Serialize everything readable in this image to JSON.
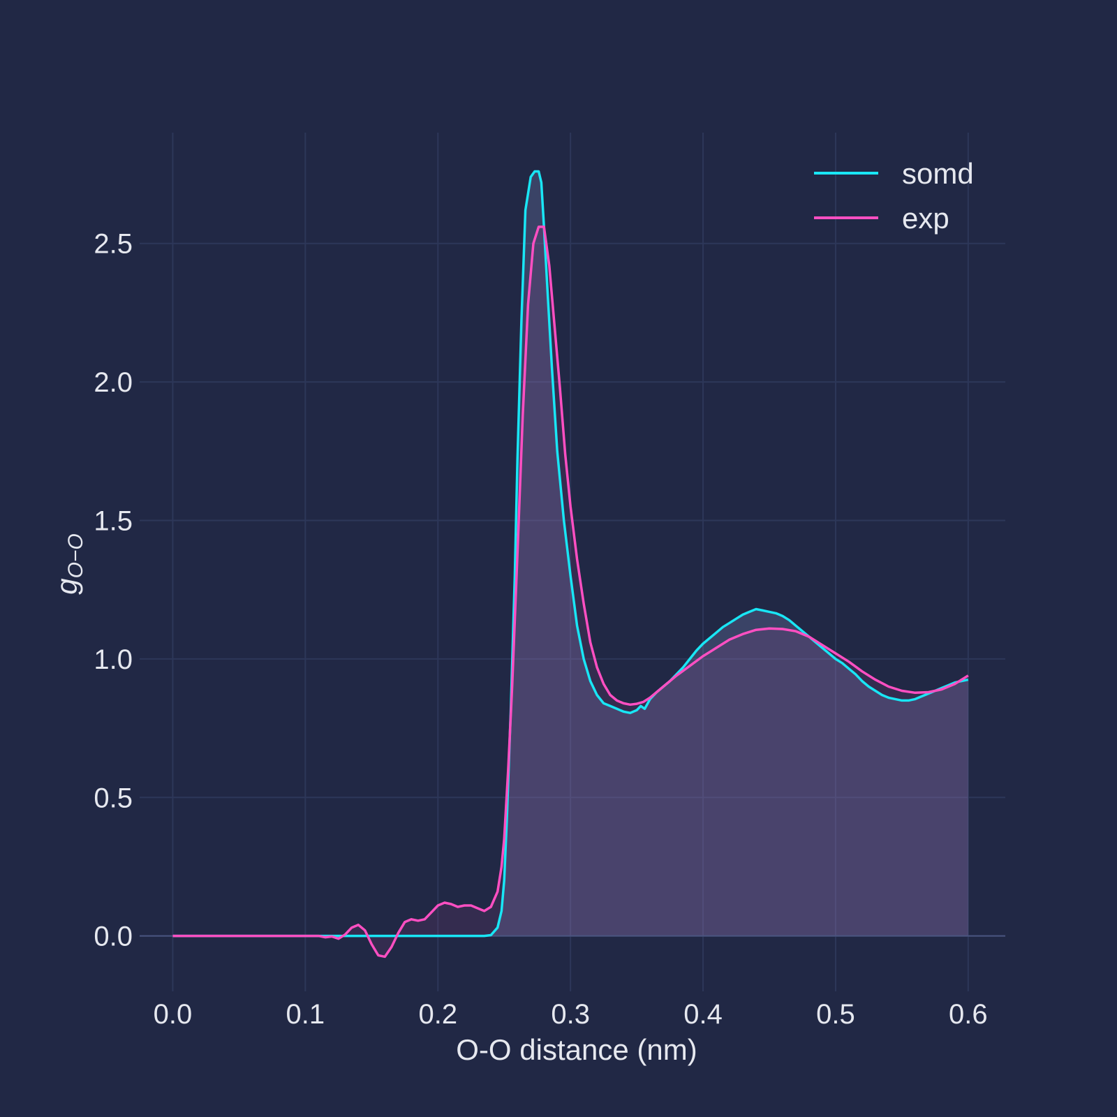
{
  "chart_data": {
    "type": "line",
    "xlabel": "O-O distance (nm)",
    "ylabel_main": "g",
    "ylabel_sub": "O−O",
    "xlim": [
      -0.025,
      0.628
    ],
    "ylim": [
      -0.2,
      2.9
    ],
    "xticks": [
      {
        "value": 0.0,
        "label": "0.0"
      },
      {
        "value": 0.1,
        "label": "0.1"
      },
      {
        "value": 0.2,
        "label": "0.2"
      },
      {
        "value": 0.3,
        "label": "0.3"
      },
      {
        "value": 0.4,
        "label": "0.4"
      },
      {
        "value": 0.5,
        "label": "0.5"
      },
      {
        "value": 0.6,
        "label": "0.6"
      }
    ],
    "yticks": [
      {
        "value": 0.0,
        "label": "0.0"
      },
      {
        "value": 0.5,
        "label": "0.5"
      },
      {
        "value": 1.0,
        "label": "1.0"
      },
      {
        "value": 1.5,
        "label": "1.5"
      },
      {
        "value": 2.0,
        "label": "2.0"
      },
      {
        "value": 2.5,
        "label": "2.5"
      }
    ],
    "grid": true,
    "legend_position": "top-right",
    "colors": {
      "background": "#212845",
      "grid": "#2d3759",
      "fill": "#8a9ad0",
      "fill_neg": "#c04a9a"
    },
    "series": [
      {
        "name": "somd",
        "color": "#19e6f5",
        "filled": true,
        "x": [
          0.0,
          0.1,
          0.2,
          0.235,
          0.24,
          0.245,
          0.248,
          0.25,
          0.252,
          0.255,
          0.258,
          0.26,
          0.263,
          0.266,
          0.27,
          0.273,
          0.276,
          0.278,
          0.28,
          0.283,
          0.286,
          0.29,
          0.295,
          0.3,
          0.305,
          0.31,
          0.315,
          0.32,
          0.325,
          0.33,
          0.335,
          0.34,
          0.345,
          0.35,
          0.353,
          0.356,
          0.36,
          0.365,
          0.37,
          0.375,
          0.38,
          0.385,
          0.39,
          0.395,
          0.4,
          0.405,
          0.41,
          0.415,
          0.42,
          0.425,
          0.43,
          0.435,
          0.44,
          0.445,
          0.45,
          0.455,
          0.46,
          0.465,
          0.47,
          0.475,
          0.48,
          0.485,
          0.49,
          0.495,
          0.5,
          0.505,
          0.51,
          0.515,
          0.52,
          0.525,
          0.53,
          0.535,
          0.54,
          0.545,
          0.55,
          0.555,
          0.56,
          0.565,
          0.57,
          0.575,
          0.58,
          0.585,
          0.59,
          0.595,
          0.6
        ],
        "y": [
          0.0,
          0.0,
          0.0,
          0.0,
          0.003,
          0.03,
          0.09,
          0.2,
          0.42,
          0.82,
          1.3,
          1.72,
          2.22,
          2.62,
          2.74,
          2.76,
          2.76,
          2.72,
          2.56,
          2.3,
          2.05,
          1.75,
          1.5,
          1.3,
          1.12,
          1.0,
          0.92,
          0.87,
          0.84,
          0.83,
          0.82,
          0.81,
          0.805,
          0.815,
          0.83,
          0.82,
          0.855,
          0.88,
          0.9,
          0.92,
          0.945,
          0.97,
          1.0,
          1.03,
          1.055,
          1.075,
          1.095,
          1.115,
          1.13,
          1.145,
          1.16,
          1.17,
          1.18,
          1.175,
          1.17,
          1.165,
          1.155,
          1.14,
          1.12,
          1.1,
          1.08,
          1.06,
          1.04,
          1.02,
          1.0,
          0.985,
          0.965,
          0.945,
          0.92,
          0.9,
          0.885,
          0.87,
          0.86,
          0.855,
          0.85,
          0.85,
          0.855,
          0.865,
          0.875,
          0.885,
          0.895,
          0.905,
          0.915,
          0.92,
          0.925
        ]
      },
      {
        "name": "exp",
        "color": "#ff4fc2",
        "filled": false,
        "x": [
          0.0,
          0.11,
          0.115,
          0.12,
          0.125,
          0.13,
          0.135,
          0.14,
          0.145,
          0.15,
          0.155,
          0.16,
          0.165,
          0.17,
          0.175,
          0.18,
          0.185,
          0.19,
          0.195,
          0.2,
          0.205,
          0.21,
          0.215,
          0.22,
          0.225,
          0.23,
          0.235,
          0.24,
          0.245,
          0.248,
          0.25,
          0.253,
          0.256,
          0.26,
          0.264,
          0.268,
          0.272,
          0.276,
          0.28,
          0.284,
          0.288,
          0.292,
          0.296,
          0.3,
          0.305,
          0.31,
          0.315,
          0.32,
          0.325,
          0.33,
          0.335,
          0.34,
          0.345,
          0.35,
          0.355,
          0.36,
          0.37,
          0.38,
          0.39,
          0.4,
          0.41,
          0.42,
          0.43,
          0.44,
          0.45,
          0.46,
          0.47,
          0.48,
          0.49,
          0.5,
          0.51,
          0.52,
          0.53,
          0.54,
          0.55,
          0.56,
          0.57,
          0.58,
          0.59,
          0.6
        ],
        "y": [
          0.0,
          0.0,
          -0.005,
          -0.002,
          -0.01,
          0.005,
          0.03,
          0.04,
          0.02,
          -0.03,
          -0.07,
          -0.075,
          -0.04,
          0.01,
          0.05,
          0.06,
          0.055,
          0.06,
          0.085,
          0.11,
          0.12,
          0.115,
          0.105,
          0.11,
          0.11,
          0.1,
          0.09,
          0.105,
          0.16,
          0.25,
          0.35,
          0.6,
          0.9,
          1.38,
          1.88,
          2.28,
          2.5,
          2.56,
          2.56,
          2.42,
          2.2,
          1.98,
          1.74,
          1.55,
          1.36,
          1.2,
          1.06,
          0.97,
          0.91,
          0.87,
          0.85,
          0.84,
          0.835,
          0.838,
          0.845,
          0.86,
          0.9,
          0.94,
          0.975,
          1.01,
          1.04,
          1.07,
          1.09,
          1.105,
          1.11,
          1.108,
          1.1,
          1.08,
          1.05,
          1.02,
          0.99,
          0.955,
          0.925,
          0.9,
          0.885,
          0.878,
          0.88,
          0.89,
          0.91,
          0.94
        ]
      }
    ]
  }
}
